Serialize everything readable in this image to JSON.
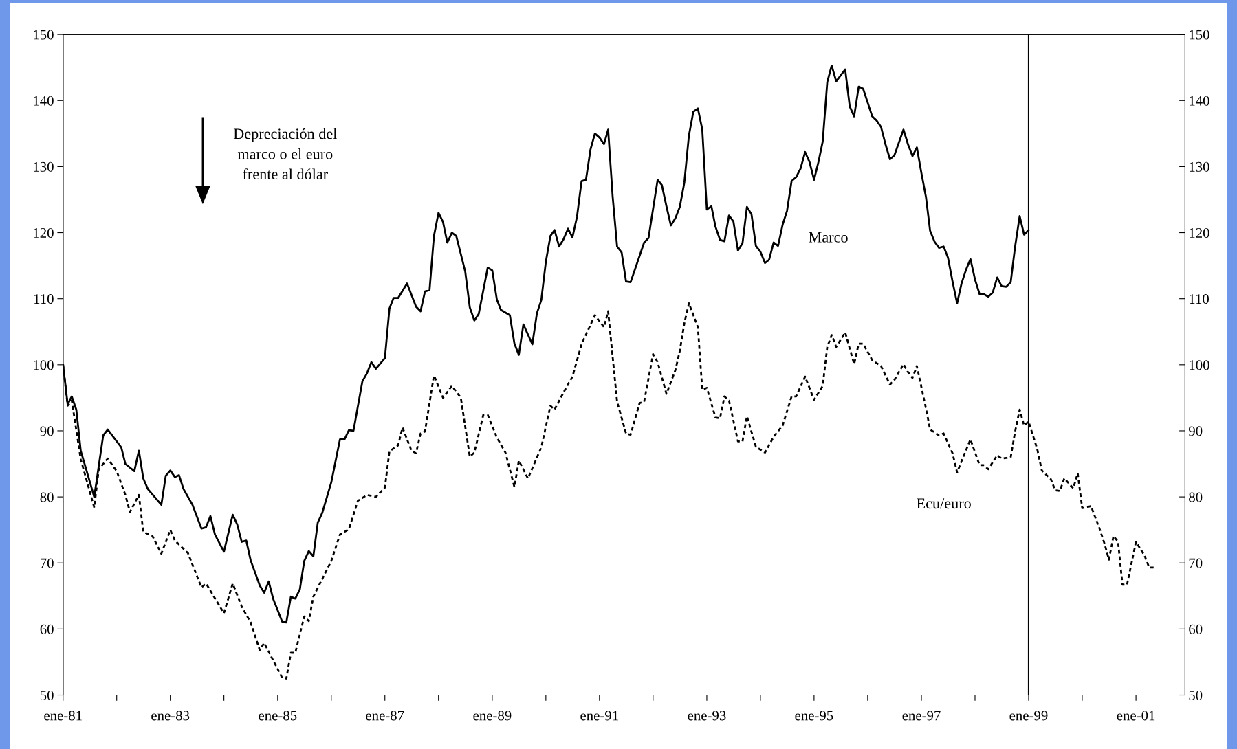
{
  "chart_data": {
    "type": "line",
    "xlim": [
      "1981-01",
      "2001-12"
    ],
    "xticks": [
      {
        "value": "1981-01",
        "label": "ene-81"
      },
      {
        "value": "1982-01",
        "label": null
      },
      {
        "value": "1983-01",
        "label": "ene-83"
      },
      {
        "value": "1984-01",
        "label": null
      },
      {
        "value": "1985-01",
        "label": "ene-85"
      },
      {
        "value": "1986-01",
        "label": null
      },
      {
        "value": "1987-01",
        "label": "ene-87"
      },
      {
        "value": "1988-01",
        "label": null
      },
      {
        "value": "1989-01",
        "label": "ene-89"
      },
      {
        "value": "1990-01",
        "label": null
      },
      {
        "value": "1991-01",
        "label": "ene-91"
      },
      {
        "value": "1992-01",
        "label": null
      },
      {
        "value": "1993-01",
        "label": "ene-93"
      },
      {
        "value": "1994-01",
        "label": null
      },
      {
        "value": "1995-01",
        "label": "ene-95"
      },
      {
        "value": "1996-01",
        "label": null
      },
      {
        "value": "1997-01",
        "label": "ene-97"
      },
      {
        "value": "1998-01",
        "label": null
      },
      {
        "value": "1999-01",
        "label": "ene-99"
      },
      {
        "value": "2000-01",
        "label": null
      },
      {
        "value": "2001-01",
        "label": "ene-01"
      }
    ],
    "ylim": [
      50,
      150
    ],
    "yticks": [
      50,
      60,
      70,
      80,
      90,
      100,
      110,
      120,
      130,
      140,
      150
    ],
    "y2lim": [
      50,
      150
    ],
    "y2ticks": [
      50,
      60,
      70,
      80,
      90,
      100,
      110,
      120,
      130,
      140,
      150
    ],
    "grid": false,
    "legend": false,
    "series": [
      {
        "name": "Marco",
        "color": "#000000",
        "line_style": "solid",
        "x": [
          "1981-01",
          "1981-02",
          "1981-03",
          "1981-04",
          "1981-05",
          "1981-08",
          "1981-10",
          "1981-11",
          "1982-02",
          "1982-03",
          "1982-05",
          "1982-06",
          "1982-07",
          "1982-08",
          "1982-11",
          "1982-12",
          "1983-01",
          "1983-02",
          "1983-03",
          "1983-04",
          "1983-06",
          "1983-08",
          "1983-09",
          "1983-10",
          "1983-11",
          "1984-01",
          "1984-03",
          "1984-04",
          "1984-05",
          "1984-06",
          "1984-07",
          "1984-09",
          "1984-10",
          "1984-11",
          "1984-12",
          "1985-02",
          "1985-03",
          "1985-04",
          "1985-05",
          "1985-06",
          "1985-07",
          "1985-08",
          "1985-09",
          "1985-10",
          "1985-11",
          "1986-01",
          "1986-03",
          "1986-04",
          "1986-05",
          "1986-06",
          "1986-08",
          "1986-09",
          "1986-10",
          "1986-11",
          "1987-01",
          "1987-02",
          "1987-03",
          "1987-04",
          "1987-06",
          "1987-08",
          "1987-09",
          "1987-10",
          "1987-11",
          "1987-12",
          "1988-01",
          "1988-02",
          "1988-03",
          "1988-04",
          "1988-05",
          "1988-07",
          "1988-08",
          "1988-09",
          "1988-10",
          "1988-12",
          "1989-01",
          "1989-02",
          "1989-03",
          "1989-05",
          "1989-06",
          "1989-07",
          "1989-08",
          "1989-10",
          "1989-11",
          "1989-12",
          "1990-01",
          "1990-02",
          "1990-03",
          "1990-04",
          "1990-05",
          "1990-06",
          "1990-07",
          "1990-08",
          "1990-09",
          "1990-10",
          "1990-11",
          "1990-12",
          "1991-01",
          "1991-02",
          "1991-03",
          "1991-04",
          "1991-05",
          "1991-06",
          "1991-07",
          "1991-08",
          "1991-11",
          "1991-12",
          "1992-02",
          "1992-03",
          "1992-04",
          "1992-05",
          "1992-06",
          "1992-07",
          "1992-08",
          "1992-09",
          "1992-10",
          "1992-11",
          "1992-12",
          "1993-01",
          "1993-02",
          "1993-03",
          "1993-04",
          "1993-05",
          "1993-06",
          "1993-07",
          "1993-08",
          "1993-09",
          "1993-10",
          "1993-11",
          "1993-12",
          "1994-01",
          "1994-02",
          "1994-03",
          "1994-04",
          "1994-05",
          "1994-06",
          "1994-07",
          "1994-08",
          "1994-09",
          "1994-10",
          "1994-11",
          "1994-12",
          "1995-01",
          "1995-02",
          "1995-03",
          "1995-04",
          "1995-05",
          "1995-06",
          "1995-07",
          "1995-08",
          "1995-09",
          "1995-10",
          "1995-11",
          "1995-12",
          "1996-01",
          "1996-02",
          "1996-03",
          "1996-04",
          "1996-05",
          "1996-06",
          "1996-07",
          "1996-09",
          "1996-10",
          "1996-11",
          "1996-12",
          "1997-01",
          "1997-02",
          "1997-03",
          "1997-04",
          "1997-05",
          "1997-06",
          "1997-07",
          "1997-08",
          "1997-09",
          "1997-10",
          "1997-11",
          "1997-12",
          "1998-01",
          "1998-02",
          "1998-03",
          "1998-04",
          "1998-05",
          "1998-06",
          "1998-07",
          "1998-08",
          "1998-09",
          "1998-10",
          "1998-11",
          "1998-12",
          "1999-01"
        ],
        "values": [
          100,
          94,
          95.2,
          93.2,
          87,
          80,
          89.3,
          90.2,
          87.5,
          85,
          83.9,
          87,
          82.8,
          81.2,
          78.8,
          83.2,
          84,
          83,
          83.3,
          81.2,
          78.8,
          75.2,
          75.4,
          77.1,
          74.3,
          71.7,
          77.3,
          75.8,
          73.2,
          73.4,
          70.4,
          66.6,
          65.5,
          67.2,
          64.6,
          61.1,
          61,
          64.9,
          64.6,
          66,
          70.3,
          71.8,
          71,
          76.1,
          77.6,
          82.2,
          88.7,
          88.7,
          90.1,
          90,
          97.5,
          98.7,
          100.4,
          99.4,
          101,
          108.5,
          110.1,
          110.1,
          112.3,
          108.8,
          108.1,
          111.1,
          111.3,
          119.5,
          123,
          121.6,
          118.5,
          120,
          119.5,
          114.1,
          108.7,
          106.7,
          107.7,
          114.7,
          114.3,
          109.9,
          108.3,
          107.5,
          103.2,
          101.5,
          106.1,
          103.1,
          107.8,
          109.8,
          115.6,
          119.5,
          120.4,
          117.9,
          119,
          120.6,
          119.3,
          122.4,
          127.8,
          128,
          132.6,
          135,
          134.4,
          133.4,
          135.6,
          125.4,
          117.9,
          117,
          112.6,
          112.5,
          118.5,
          119.2,
          128,
          127.2,
          124,
          121.1,
          122.2,
          123.9,
          127.6,
          134.7,
          138.3,
          138.8,
          135.6,
          123.5,
          124,
          120.9,
          118.9,
          118.7,
          122.6,
          121.7,
          117.3,
          118.4,
          123.9,
          122.8,
          118,
          117.1,
          115.4,
          115.9,
          118.5,
          118,
          121.2,
          123.3,
          127.8,
          128.4,
          129.7,
          132.2,
          130.7,
          128,
          130.8,
          133.8,
          142.8,
          145.3,
          142.9,
          143.8,
          144.7,
          139.1,
          137.6,
          142.1,
          141.8,
          139.7,
          137.6,
          137,
          136,
          133.4,
          131.1,
          131.7,
          135.6,
          133.4,
          131.6,
          132.9,
          129,
          125.4,
          120.3,
          118.6,
          117.7,
          117.9,
          116.2,
          112.6,
          109.3,
          112.3,
          114.4,
          116,
          112.9,
          110.7,
          110.7,
          110.3,
          110.9,
          113.2,
          111.9,
          111.8,
          112.5,
          117.9,
          122.5,
          119.7,
          120.4
        ]
      },
      {
        "name": "Ecu/euro",
        "color": "#000000",
        "line_style": "dotted",
        "x": [
          "1981-01",
          "1981-02",
          "1981-03",
          "1981-05",
          "1981-08",
          "1981-09",
          "1981-11",
          "1982-01",
          "1982-03",
          "1982-04",
          "1982-06",
          "1982-07",
          "1982-09",
          "1982-11",
          "1983-01",
          "1983-02",
          "1983-05",
          "1983-08",
          "1983-09",
          "1984-01",
          "1984-03",
          "1984-05",
          "1984-07",
          "1984-09",
          "1984-10",
          "1985-02",
          "1985-03",
          "1985-04",
          "1985-05",
          "1985-07",
          "1985-08",
          "1985-09",
          "1986-01",
          "1986-03",
          "1986-05",
          "1986-07",
          "1986-09",
          "1986-11",
          "1987-01",
          "1987-02",
          "1987-04",
          "1987-05",
          "1987-07",
          "1987-08",
          "1987-09",
          "1987-10",
          "1987-12",
          "1988-02",
          "1988-04",
          "1988-06",
          "1988-08",
          "1988-09",
          "1988-11",
          "1988-12",
          "1989-02",
          "1989-04",
          "1989-06",
          "1989-07",
          "1989-09",
          "1989-12",
          "1990-02",
          "1990-03",
          "1990-05",
          "1990-07",
          "1990-09",
          "1990-12",
          "1991-02",
          "1991-03",
          "1991-05",
          "1991-07",
          "1991-08",
          "1991-10",
          "1991-11",
          "1992-01",
          "1992-02",
          "1992-04",
          "1992-06",
          "1992-07",
          "1992-08",
          "1992-09",
          "1992-11",
          "1992-12",
          "1993-01",
          "1993-03",
          "1993-04",
          "1993-05",
          "1993-06",
          "1993-08",
          "1993-09",
          "1993-10",
          "1993-12",
          "1994-02",
          "1994-04",
          "1994-06",
          "1994-08",
          "1994-09",
          "1994-11",
          "1995-01",
          "1995-03",
          "1995-04",
          "1995-05",
          "1995-06",
          "1995-08",
          "1995-10",
          "1995-11",
          "1995-12",
          "1996-02",
          "1996-04",
          "1996-06",
          "1996-07",
          "1996-09",
          "1996-10",
          "1996-11",
          "1996-12",
          "1997-02",
          "1997-03",
          "1997-05",
          "1997-06",
          "1997-08",
          "1997-09",
          "1997-10",
          "1997-12",
          "1998-02",
          "1998-03",
          "1998-04",
          "1998-06",
          "1998-07",
          "1998-09",
          "1998-10",
          "1998-11",
          "1998-12",
          "1999-01",
          "1999-03",
          "1999-04",
          "1999-06",
          "1999-07",
          "1999-08",
          "1999-09",
          "1999-11",
          "1999-12",
          "2000-01",
          "2000-03",
          "2000-05",
          "2000-06",
          "2000-07",
          "2000-08",
          "2000-09",
          "2000-10",
          "2000-11",
          "2001-01",
          "2001-03",
          "2001-04",
          "2001-05"
        ],
        "values": [
          100,
          93.8,
          94.6,
          85.7,
          78.4,
          84.2,
          85.8,
          83.9,
          80.3,
          77.7,
          80.3,
          74.7,
          74.1,
          71.4,
          75,
          73.4,
          71.5,
          66.3,
          66.9,
          62.4,
          66.9,
          63.4,
          61,
          56.8,
          57.9,
          52.6,
          52.5,
          56.4,
          56.4,
          61.9,
          61.2,
          64.9,
          70.3,
          74.3,
          75.1,
          79.4,
          80.3,
          80,
          81.4,
          86.9,
          87.8,
          90.5,
          87,
          86.6,
          89.6,
          89.9,
          98.4,
          95,
          96.8,
          95,
          86.1,
          86.7,
          92.4,
          92.4,
          89,
          86.7,
          81.5,
          85.5,
          82.8,
          87.5,
          93.8,
          93.2,
          95.8,
          98.2,
          103.1,
          107.5,
          105.7,
          108.1,
          94.4,
          89.6,
          89.4,
          94.2,
          94.4,
          101.6,
          100.4,
          95.6,
          99.2,
          102.1,
          106.3,
          109.3,
          105.7,
          96.2,
          96.5,
          92,
          91.9,
          95.2,
          94.6,
          88.4,
          88.4,
          92.2,
          87.6,
          86.7,
          89.1,
          90.8,
          95.2,
          95.2,
          98.2,
          94.7,
          96.8,
          102.7,
          104.5,
          102.7,
          104.9,
          100.1,
          103.2,
          103.2,
          100.7,
          99.8,
          97,
          97.7,
          100.1,
          98.9,
          98,
          99.8,
          93.4,
          90.2,
          89.3,
          89.6,
          86.6,
          83.7,
          85.4,
          88.7,
          84.8,
          84.8,
          84.2,
          86.3,
          85.8,
          86,
          89.9,
          93.2,
          90.8,
          91.4,
          87.2,
          84,
          82.7,
          81,
          80.9,
          82.8,
          81.3,
          83.6,
          78.3,
          78.6,
          75,
          72.9,
          70.5,
          74.1,
          73.2,
          66.7,
          66.7,
          73.2,
          71.1,
          69.3,
          69.3
        ]
      }
    ],
    "ref_lines": [
      {
        "axis": "x",
        "value": "1999-01",
        "color": "#000000",
        "line_style": "solid"
      }
    ],
    "annotations": [
      "Depreciación del\nmarco o el euro\nfrente al dólar"
    ]
  }
}
